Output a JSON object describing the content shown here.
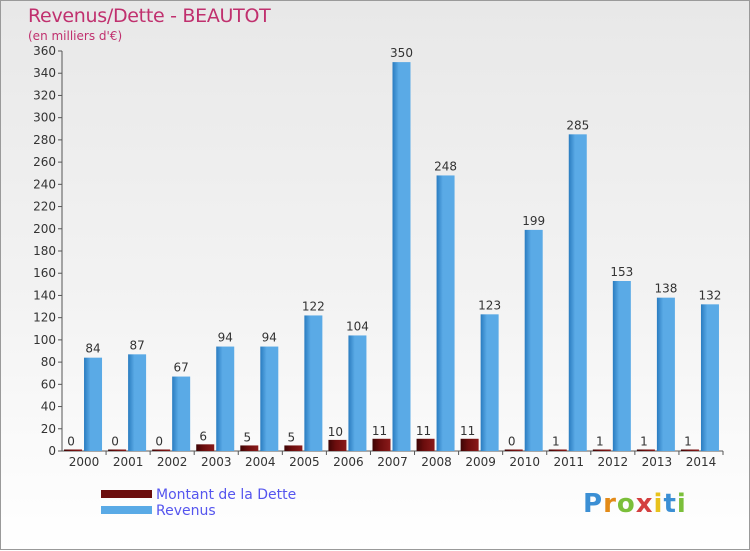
{
  "title": "Revenus/Dette - BEAUTOT",
  "subtitle": "(en milliers d'€)",
  "colors": {
    "debt": "#6b0d0d",
    "revenue": "#5aaae6",
    "revenue_dark": "#2a7cc0",
    "title": "#c0306e",
    "legend_text": "#5555ee"
  },
  "legend": {
    "debt_label": "Montant de la Dette",
    "revenue_label": "Revenus"
  },
  "logo": {
    "letters": [
      "P",
      "r",
      "o",
      "x",
      "i",
      "t",
      "i"
    ],
    "colors": [
      "#3b8fd4",
      "#e38a17",
      "#7bbf3a",
      "#d43f3f",
      "#e8c21c",
      "#3b8fd4",
      "#7bbf3a"
    ]
  },
  "chart_data": {
    "type": "bar",
    "title": "Revenus/Dette - BEAUTOT",
    "ylabel": "(en milliers d'€)",
    "ylim": [
      0,
      360
    ],
    "yticks": [
      0,
      20,
      40,
      60,
      80,
      100,
      120,
      140,
      160,
      180,
      200,
      220,
      240,
      260,
      280,
      300,
      320,
      340,
      360
    ],
    "categories": [
      "2000",
      "2001",
      "2002",
      "2003",
      "2004",
      "2005",
      "2006",
      "2007",
      "2008",
      "2009",
      "2010",
      "2011",
      "2012",
      "2013",
      "2014"
    ],
    "series": [
      {
        "name": "Montant de la Dette",
        "values": [
          0,
          0,
          0,
          6,
          5,
          5,
          10,
          11,
          11,
          11,
          0,
          1,
          1,
          1,
          1
        ]
      },
      {
        "name": "Revenus",
        "values": [
          84,
          87,
          67,
          94,
          94,
          122,
          104,
          350,
          248,
          123,
          199,
          285,
          153,
          138,
          132
        ]
      }
    ],
    "legend_position": "bottom-left",
    "grid": false
  }
}
